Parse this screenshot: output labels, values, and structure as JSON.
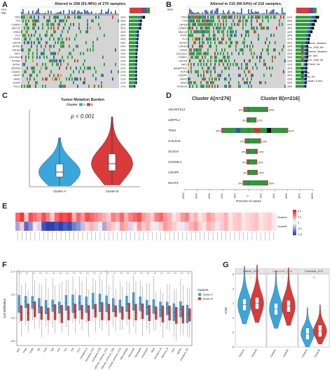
{
  "panel_letters": {
    "a": "A",
    "b": "B",
    "c": "C",
    "d": "D",
    "e": "E",
    "f": "F",
    "g": "G"
  },
  "colors": {
    "cluster_a": "#3aa6dc",
    "cluster_b": "#d93a3a",
    "missense": "#2d9a3a",
    "frameshift_del": "#1f5fa8",
    "nonsense": "#d9312b",
    "splice": "#f08a2a",
    "frameshift_ins": "#8a3c96",
    "inframe_ins": "#e8d64a",
    "del": "#333333",
    "amp": "#111111",
    "multi": "#555555",
    "complex": "#9a9a9a",
    "heat_high": "#d7191c",
    "heat_low": "#2c3fb3",
    "heat_mid": "#ffffff",
    "neutral_bar": "#bdbdbd"
  },
  "chart_data": [
    {
      "panel": "A",
      "type": "oncoplot",
      "title": "Altered in 258 (93.48%) of 276 samples.",
      "tmb_axis_max": "7318",
      "tmb_left_label": "TMB",
      "genes": [
        "TP53",
        "TTN",
        "CSMD3",
        "MUC16",
        "KRAS",
        "FLG",
        "RYR2",
        "LRP1B",
        "SPTA1",
        "USH2A",
        "FAT3",
        "COL11A1",
        "PTPRD",
        "SPTA1",
        "ZNF536",
        "CSMD1",
        "XIRP2",
        "ANK2",
        "EGFR",
        "PCLO"
      ],
      "percentages": [
        "42%",
        "34%",
        "33%",
        "32%",
        "26%",
        "26%",
        "25%",
        "24%",
        "24%",
        "23%",
        "22%",
        "22%",
        "22%",
        "21%",
        "21%",
        "21%",
        "21%",
        "21%",
        "21%",
        "17%"
      ],
      "top_annotation": "Cluster"
    },
    {
      "panel": "B",
      "type": "oncoplot",
      "title": "Altered in 215 (99.54%) of 216 samples.",
      "tmb_axis_max": "8000",
      "genes": [
        "TP53",
        "TTN",
        "LRP1B",
        "CSMD3",
        "MUC16",
        "RYR2",
        "FLG",
        "SPTA1",
        "USH2A",
        "KRAS",
        "COL11A1",
        "CSMD1",
        "ZFHX4",
        "FAT3",
        "ADAMTS12",
        "RYR3",
        "KEAP1",
        "XIRP2",
        "NAV3",
        "PCDH15"
      ],
      "percentages": [
        "61%",
        "55%",
        "50%",
        "48%",
        "44%",
        "39%",
        "37%",
        "36%",
        "33%",
        "33%",
        "33%",
        "33%",
        "31%",
        "31%",
        "30%",
        "30%",
        "30%",
        "29%",
        "29%",
        "28%"
      ],
      "legend": [
        "Missense_Mutation",
        "Frame_Shift_Del",
        "Nonsense_Mutation",
        "Splice_Site",
        "Frame_Shift_Ins",
        "In_Frame_Ins",
        "Del",
        "Amp",
        "Multi_Hit",
        "Complex_Event"
      ]
    },
    {
      "panel": "C",
      "type": "violin",
      "title": "Tumor Mutation Burden",
      "legend_title": "Cluster",
      "legend_items": [
        "A",
        "B"
      ],
      "annotation": "p < 0.001",
      "categories": [
        "Cluster A",
        "Cluster B"
      ],
      "series": [
        {
          "name": "A",
          "median": 4.2,
          "q1": 2.8,
          "q3": 6.5,
          "min": 0.3,
          "max": 14
        },
        {
          "name": "B",
          "median": 6.6,
          "q1": 4.6,
          "q3": 9.4,
          "min": 0.5,
          "max": 20
        }
      ],
      "ylim": [
        0,
        22
      ]
    },
    {
      "panel": "D",
      "type": "bar",
      "orientation": "horizontal-diverging",
      "header_left": "Cluster A[n=276]",
      "header_right": "Cluster B[n=216]",
      "xlabel": "Percent of cases",
      "tick_labels": [
        "100%",
        "80%",
        "60%",
        "40%",
        "20%",
        "0",
        "20%",
        "40%",
        "60%",
        "80%",
        "100%"
      ],
      "categories": [
        "ADAMTS12",
        "UBTFL1",
        "TP53",
        "COL6A6",
        "SCN1A",
        "CD163L1",
        "CENPF",
        "KEAP1"
      ],
      "left_pct": [
        "8%",
        "3%",
        "42%",
        "6%",
        "4%",
        "3%",
        "2%",
        "9%"
      ],
      "right_pct": [
        "30%",
        "12%",
        "61%",
        "19%",
        "14%",
        "13%",
        "14%",
        "30%"
      ],
      "left_values": [
        8,
        3,
        42,
        6,
        4,
        3,
        2,
        9
      ],
      "right_values": [
        30,
        12,
        61,
        19,
        14,
        13,
        14,
        30
      ]
    },
    {
      "panel": "E",
      "type": "heatmap",
      "row_labels": [
        "ClusterA",
        "ClusterB"
      ],
      "scale_ticks": [
        "0.4",
        "0.2",
        "0",
        "-0.2",
        "-0.4"
      ],
      "row_a": [
        0.3,
        0.4,
        0.1,
        0.35,
        0.28,
        0.22,
        0.35,
        0.25,
        0.1,
        0.3,
        0.38,
        0.35,
        0.4,
        0.15,
        0.3,
        0.2,
        0.35,
        0.3,
        0.25,
        0.2,
        0.15,
        0.1,
        0.25,
        0.2,
        0.3,
        0.15,
        0.25,
        0.3,
        0.35,
        0.2,
        0.15,
        0.1,
        0.25,
        0.3,
        0.2,
        0.15,
        0.05,
        0.1,
        0.2,
        0.25,
        0.1,
        0.15,
        0.05,
        0.1,
        0.2,
        0.15,
        0.08,
        0.1,
        0.15,
        0.05,
        0.1,
        0.12,
        0.05,
        0.08,
        0.1,
        0.12,
        0.05,
        0.08,
        0.1,
        0.05
      ],
      "row_b": [
        -0.2,
        0.1,
        -0.35,
        -0.25,
        0.05,
        -0.1,
        -0.4,
        -0.45,
        -0.45,
        -0.4,
        -0.45,
        -0.38,
        -0.42,
        -0.3,
        -0.25,
        -0.15,
        0.1,
        0.15,
        -0.1,
        0.05,
        -0.2,
        0.15,
        0.1,
        -0.05,
        0.2,
        0.15,
        -0.1,
        0.05,
        0.2,
        0.1,
        0.15,
        0.05,
        -0.05,
        0.1,
        0.2,
        0.15,
        0.1,
        0.05,
        -0.05,
        0.1,
        0.15,
        0.2,
        0.1,
        0.05,
        0.15,
        0.1,
        -0.05,
        0.1,
        0.15,
        0.05,
        0.1,
        0.12,
        0.05,
        0.08,
        0.1,
        0.12,
        0.05,
        0.08,
        0.1,
        0.05
      ]
    },
    {
      "panel": "F",
      "type": "boxplot",
      "ylabel": "Cell infiltration",
      "legend_title": "Clusters",
      "legend_items": [
        "Cluster A",
        "Cluster B"
      ],
      "categories": [
        "aDC",
        "Tregs",
        "Tcells",
        "NK",
        "CD8",
        "Tgd",
        "TFH",
        "Th1",
        "Th2",
        "Th17",
        "Activated_B",
        "Activated_CD4",
        "Activated_CD8",
        "Effector_memory_CD4",
        "Effector_memory_CD8",
        "Central_memory_CD4",
        "Macrophage",
        "Monocyte",
        "Neutrophil",
        "Eosinophil",
        "Mast",
        "Immature_B",
        "Memory_B",
        "pDC",
        "MDSC",
        "Immature_DC"
      ],
      "series": [
        {
          "name": "Cluster A",
          "medians": [
            0.3,
            0.34,
            0.33,
            0.26,
            0.23,
            0.26,
            0.22,
            0.32,
            0.3,
            0.32,
            0.28,
            0.36,
            0.32,
            0.3,
            0.27,
            0.25,
            0.3,
            0.35,
            0.3,
            0.22,
            0.24,
            0.18,
            0.2,
            0.12,
            0.18,
            0.08
          ]
        },
        {
          "name": "Cluster B",
          "medians": [
            0.1,
            0.12,
            0.18,
            0.1,
            0.08,
            0.12,
            0.08,
            0.1,
            0.14,
            0.12,
            0.1,
            0.15,
            0.14,
            0.12,
            0.14,
            0.1,
            0.14,
            0.12,
            0.14,
            0.1,
            0.1,
            0.08,
            0.1,
            0.05,
            0.07,
            0.06
          ]
        }
      ],
      "ylim": [
        -0.6,
        1.0
      ],
      "yticks": [
        "1.0",
        "0.5",
        "0.0",
        "-0.5"
      ]
    },
    {
      "panel": "G",
      "type": "violin",
      "ylabel": "IC50",
      "facets": [
        {
          "label": "Afatinib_1032",
          "label_color": "#333333",
          "sig": "*"
        },
        {
          "label": "Osimertinib_1919",
          "label_color": "#d93a3a",
          "sig": "*"
        },
        {
          "label": "Trametinib_1372",
          "label_color": "#333333",
          "sig": "**"
        }
      ],
      "categories": [
        "ClusterA",
        "ClusterB"
      ],
      "ylim": [
        -4,
        6
      ],
      "yticks": [
        "6",
        "4",
        "2",
        "0",
        "-2",
        "-4"
      ],
      "series": [
        {
          "name": "ClusterA",
          "medians": [
            1.8,
            1.2,
            -2.2
          ]
        },
        {
          "name": "ClusterB",
          "medians": [
            2.0,
            1.6,
            -1.8
          ]
        }
      ]
    }
  ]
}
